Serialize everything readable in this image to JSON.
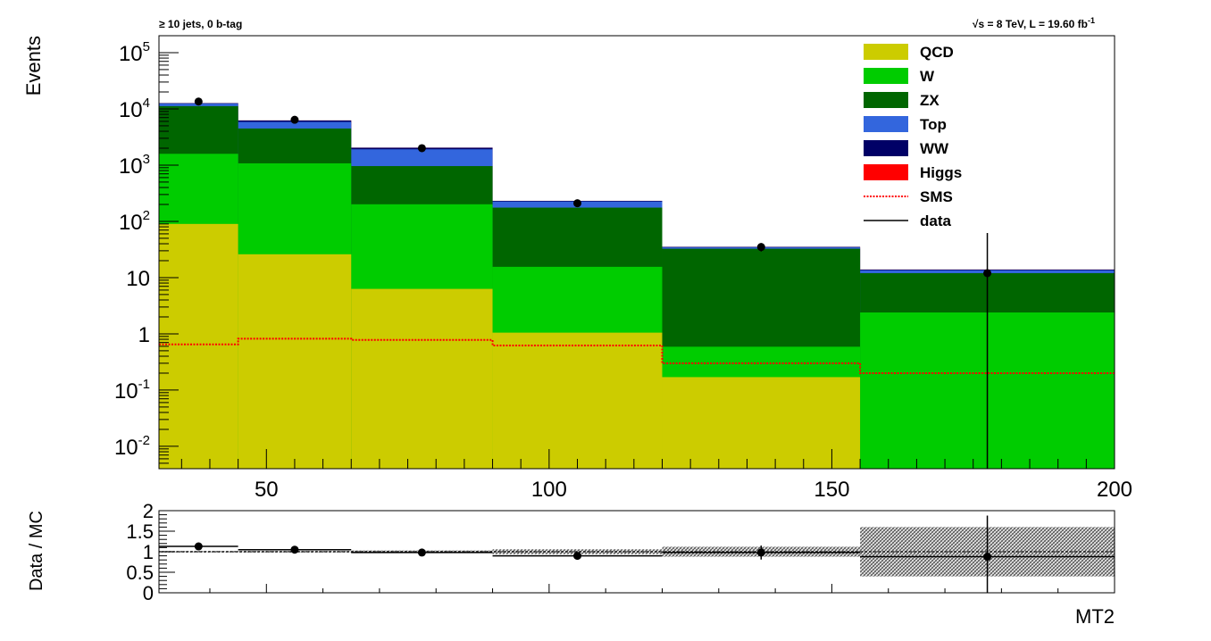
{
  "chart_data": [
    {
      "type": "area",
      "stacked": true,
      "title_left": "≥ 10 jets, 0 b-tag",
      "title_right_main": "√s = 8 TeV, L = 19.60 fb",
      "title_right_sup": "-1",
      "xlabel": "",
      "ylabel": "Events",
      "log_y": true,
      "xlim": [
        31,
        200
      ],
      "ylim": [
        0.004,
        200000
      ],
      "grid": false,
      "legend_position": "top-right",
      "x_tick_labels": [
        "50",
        "100",
        "150",
        "200"
      ],
      "y_tick_labels": [
        {
          "v": 100000,
          "m": "10",
          "e": "5"
        },
        {
          "v": 10000,
          "m": "10",
          "e": "4"
        },
        {
          "v": 1000,
          "m": "10",
          "e": "3"
        },
        {
          "v": 100,
          "m": "10",
          "e": "2"
        },
        {
          "v": 10,
          "m": "10",
          "e": ""
        },
        {
          "v": 1,
          "m": "1",
          "e": ""
        },
        {
          "v": 0.1,
          "m": "10",
          "e": "-1"
        },
        {
          "v": 0.01,
          "m": "10",
          "e": "-2"
        }
      ],
      "bin_edges": [
        31,
        45,
        65,
        90,
        120,
        155,
        200
      ],
      "series": [
        {
          "name": "QCD",
          "color": "#cccc00",
          "values": [
            90,
            26,
            6.3,
            1.05,
            0.17,
            0.0001
          ]
        },
        {
          "name": "W",
          "color": "#00cc00",
          "values": [
            1500,
            1050,
            195,
            14.5,
            0.42,
            2.4
          ]
        },
        {
          "name": "ZX",
          "color": "#006600",
          "values": [
            9600,
            3400,
            760,
            160,
            32,
            9.6
          ]
        },
        {
          "name": "Top",
          "color": "#3366dd",
          "values": [
            1200,
            1400,
            950,
            50,
            1.8,
            1.5
          ]
        },
        {
          "name": "WW",
          "color": "#000066",
          "values": [
            250,
            350,
            130,
            6,
            0.8,
            0.4
          ]
        },
        {
          "name": "Higgs",
          "color": "#ff0000",
          "values": [
            5,
            4,
            1.5,
            0.2,
            0.05,
            0.02
          ]
        }
      ],
      "sms": {
        "name": "SMS",
        "color": "#ff0000",
        "values": [
          0.65,
          0.82,
          0.78,
          0.62,
          0.3,
          0.2
        ]
      },
      "data": {
        "name": "data",
        "x": [
          38,
          55,
          77.5,
          105,
          137.5,
          177.5
        ],
        "y": [
          13500,
          6400,
          2000,
          210,
          35,
          12
        ],
        "err": [
          116,
          80,
          45,
          14.5,
          5.9,
          50
        ]
      },
      "legend_entries": [
        "QCD",
        "W",
        "ZX",
        "Top",
        "WW",
        "Higgs",
        "SMS",
        "data"
      ]
    },
    {
      "type": "scatter",
      "ylabel": "Data / MC",
      "xlabel": "MT2",
      "xlim": [
        31,
        200
      ],
      "ylim": [
        0,
        2
      ],
      "y_tick_labels": [
        "0",
        "0.5",
        "1",
        "1.5",
        "2"
      ],
      "bin_edges": [
        31,
        45,
        65,
        90,
        120,
        155,
        200
      ],
      "ratio": [
        1.13,
        1.05,
        0.98,
        0.9,
        0.98,
        0.88
      ],
      "ratio_err": [
        0.01,
        0.013,
        0.022,
        0.07,
        0.17,
        1.0
      ],
      "mc_err": [
        0.02,
        0.02,
        0.03,
        0.06,
        0.12,
        0.6
      ]
    }
  ]
}
